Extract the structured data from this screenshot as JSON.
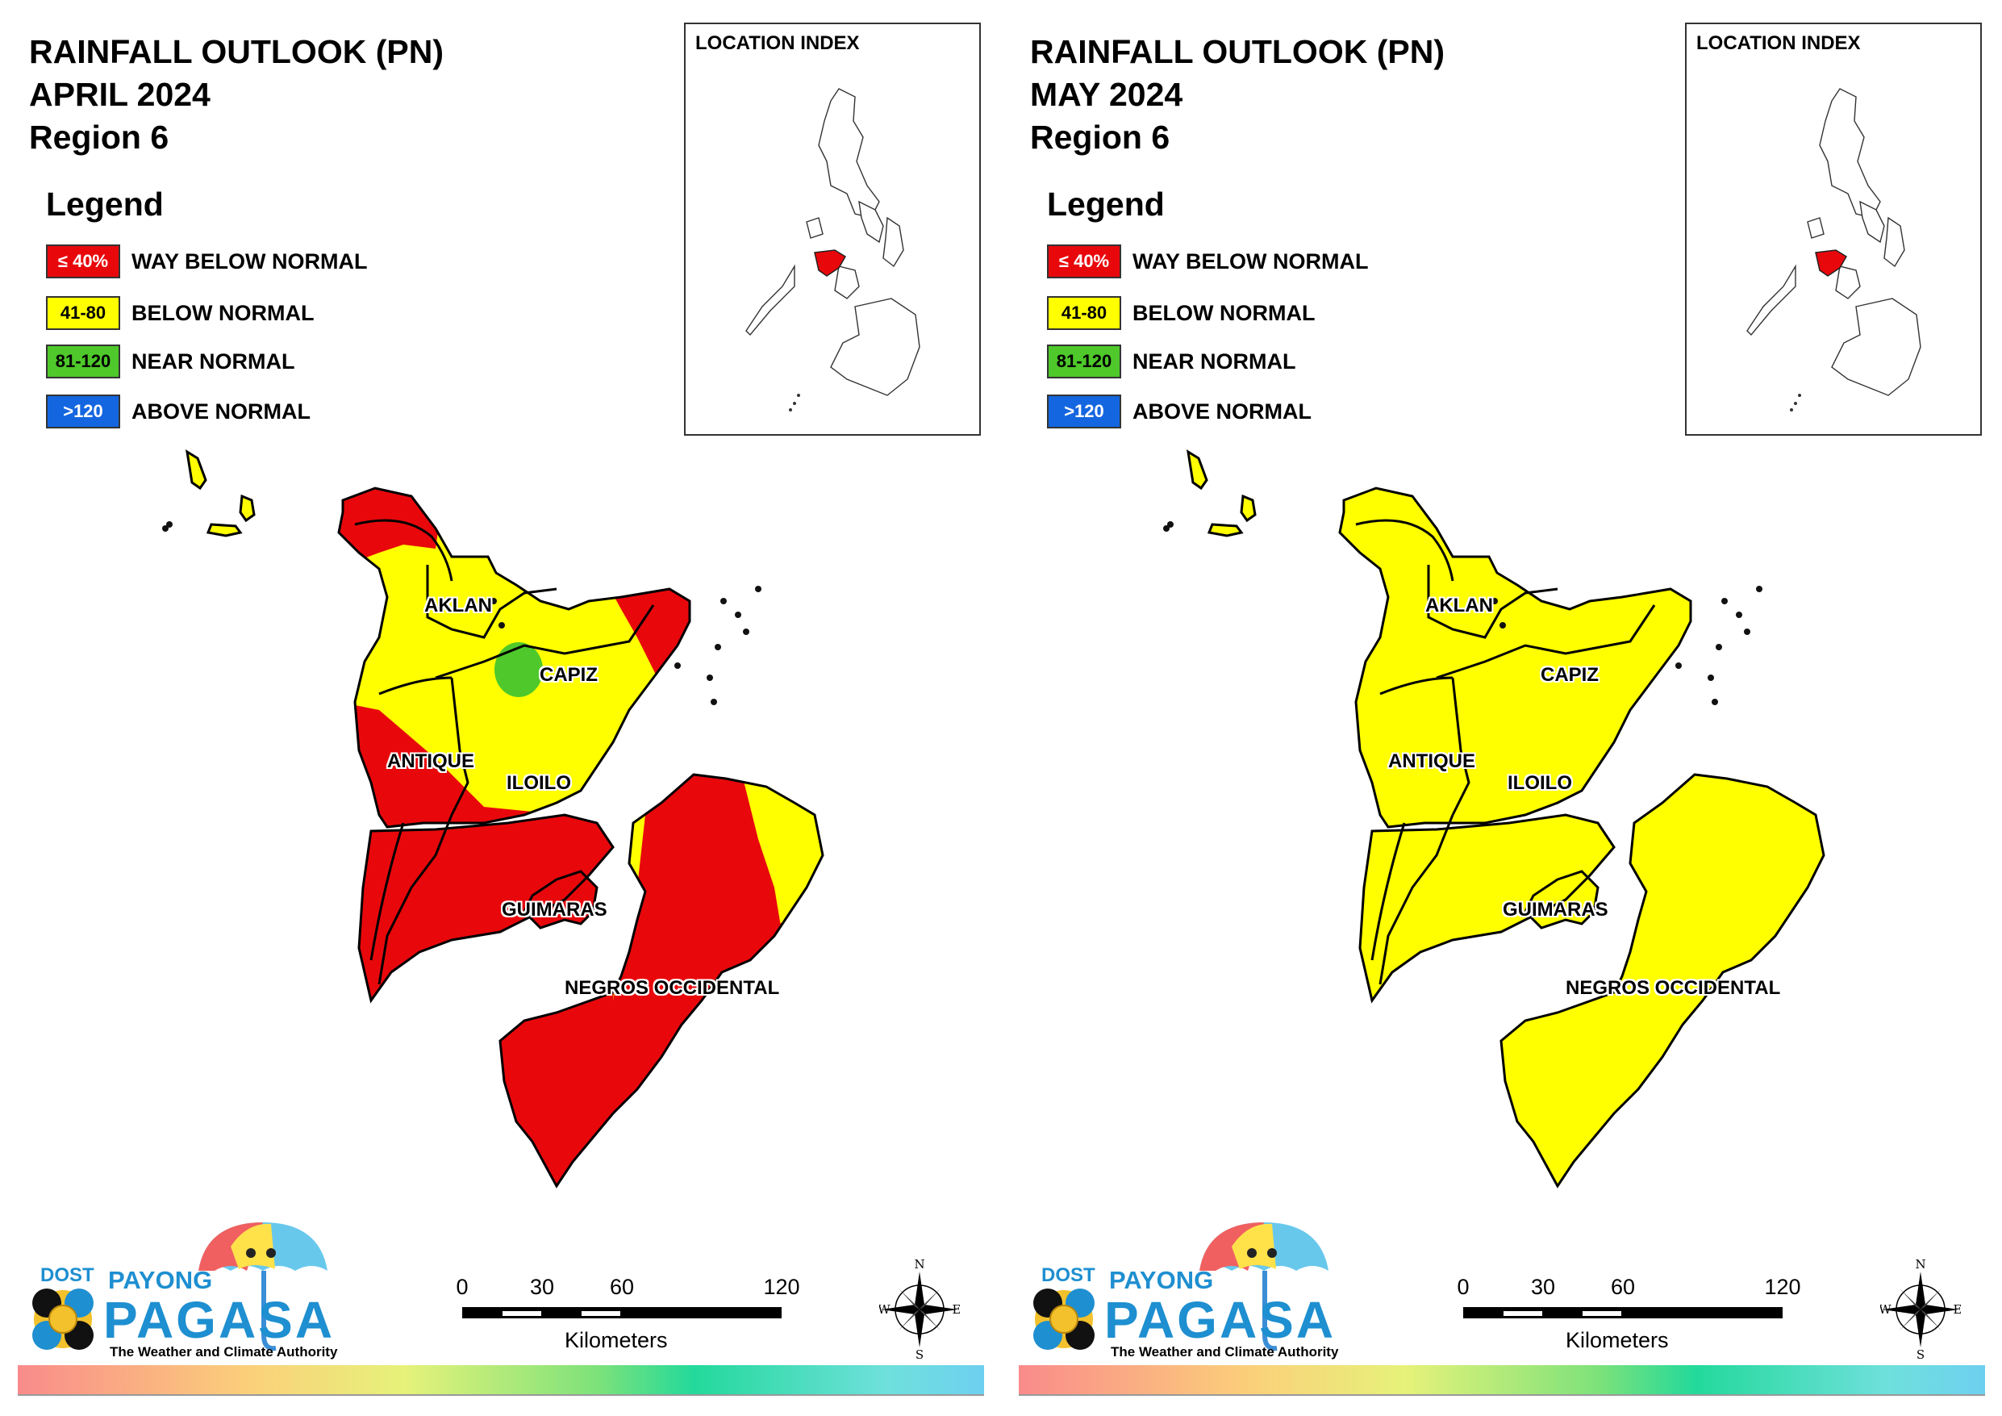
{
  "panels": [
    {
      "title_line1": "RAINFALL OUTLOOK (PN)",
      "title_line2": "APRIL 2024",
      "title_line3": "Region 6",
      "legend_title": "Legend",
      "legend": [
        {
          "range": "≤ 40%",
          "label": "WAY BELOW NORMAL",
          "color": "#e8080c",
          "text_color": "#ffffff"
        },
        {
          "range": "41-80",
          "label": "BELOW NORMAL",
          "color": "#ffff00",
          "text_color": "#000000"
        },
        {
          "range": "81-120",
          "label": "NEAR NORMAL",
          "color": "#4ec82a",
          "text_color": "#000000"
        },
        {
          "range": ">120",
          "label": "ABOVE NORMAL",
          "color": "#1466e0",
          "text_color": "#ffffff"
        }
      ],
      "location_index_title": "LOCATION INDEX",
      "provinces": {
        "aklan": "AKLAN",
        "capiz": "CAPIZ",
        "antique": "ANTIQUE",
        "iloilo": "ILOILO",
        "guimaras": "GUIMARAS",
        "negros": "NEGROS OCCIDENTAL"
      },
      "map_colors": {
        "base": "#ffff00",
        "dry": "#e8080c",
        "near_normal": "#4ec82a"
      },
      "scale": {
        "ticks": [
          "0",
          "30",
          "60",
          "120"
        ],
        "unit": "Kilometers"
      },
      "compass": {
        "n": "N",
        "s": "S",
        "e": "E",
        "w": "W"
      },
      "logo": {
        "dost": "DOST",
        "payong": "PAYONG",
        "pagasa": "PAGASA",
        "tagline": "The Weather and Climate Authority"
      }
    },
    {
      "title_line1": "RAINFALL OUTLOOK (PN)",
      "title_line2": "MAY 2024",
      "title_line3": "Region 6",
      "legend_title": "Legend",
      "legend": [
        {
          "range": "≤ 40%",
          "label": "WAY BELOW NORMAL",
          "color": "#e8080c",
          "text_color": "#ffffff"
        },
        {
          "range": "41-80",
          "label": "BELOW NORMAL",
          "color": "#ffff00",
          "text_color": "#000000"
        },
        {
          "range": "81-120",
          "label": "NEAR NORMAL",
          "color": "#4ec82a",
          "text_color": "#000000"
        },
        {
          "range": ">120",
          "label": "ABOVE NORMAL",
          "color": "#1466e0",
          "text_color": "#ffffff"
        }
      ],
      "location_index_title": "LOCATION INDEX",
      "provinces": {
        "aklan": "AKLAN",
        "capiz": "CAPIZ",
        "antique": "ANTIQUE",
        "iloilo": "ILOILO",
        "guimaras": "GUIMARAS",
        "negros": "NEGROS OCCIDENTAL"
      },
      "map_colors": {
        "base": "#ffff00",
        "dry": "#ffff00",
        "near_normal": "#ffff00"
      },
      "scale": {
        "ticks": [
          "0",
          "30",
          "60",
          "120"
        ],
        "unit": "Kilometers"
      },
      "compass": {
        "n": "N",
        "s": "S",
        "e": "E",
        "w": "W"
      },
      "logo": {
        "dost": "DOST",
        "payong": "PAYONG",
        "pagasa": "PAGASA",
        "tagline": "The Weather and Climate Authority"
      }
    }
  ],
  "location_index_highlight": "#e8080c"
}
